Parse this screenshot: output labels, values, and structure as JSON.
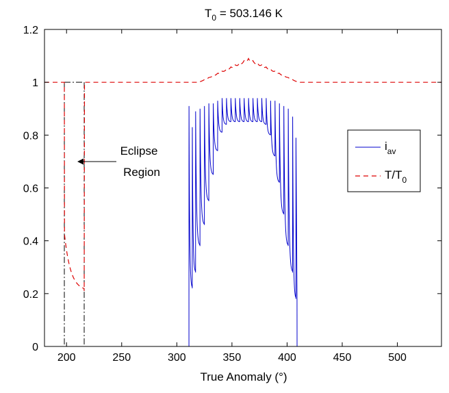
{
  "chart_data": {
    "type": "line",
    "title_main": "T",
    "title_sub": "0",
    "title_rest": " = 503.146 K",
    "xlabel": "True Anomaly (°)",
    "ylabel": "",
    "xlim": [
      180,
      540
    ],
    "ylim": [
      0,
      1.2
    ],
    "x_ticks": [
      200,
      250,
      300,
      350,
      400,
      450,
      500
    ],
    "x_tick_labels": [
      "200",
      "250",
      "300",
      "350",
      "400",
      "450",
      "500"
    ],
    "y_ticks": [
      0,
      0.2,
      0.4,
      0.6,
      0.8,
      1,
      1.2
    ],
    "y_tick_labels": [
      "0",
      "0.2",
      "0.4",
      "0.6",
      "0.8",
      "1",
      "1.2"
    ],
    "grid": false,
    "legend_position": "right",
    "legend": [
      {
        "main": "i",
        "sub": "av",
        "color": "#0000cc",
        "style": "solid"
      },
      {
        "main": "T/T",
        "sub": "0",
        "color": "#dd0000",
        "style": "dashed"
      }
    ],
    "annotation": {
      "line1": "Eclipse",
      "line2": "Region",
      "points_to": [
        216,
        0.69
      ]
    },
    "eclipse_bounds": [
      198,
      216
    ],
    "series": [
      {
        "name": "i_av",
        "color": "#0000cc",
        "style": "solid",
        "x_range": [
          311,
          409
        ],
        "pulses": [
          311,
          314,
          317,
          321,
          325,
          329,
          333,
          337,
          341,
          345,
          349,
          353,
          357,
          361,
          365,
          369,
          373,
          377,
          381,
          385,
          389,
          393,
          397,
          401,
          405,
          408
        ],
        "peaks": [
          0.91,
          0.83,
          0.89,
          0.9,
          0.91,
          0.92,
          0.92,
          0.93,
          0.94,
          0.94,
          0.94,
          0.94,
          0.94,
          0.94,
          0.94,
          0.94,
          0.94,
          0.94,
          0.94,
          0.93,
          0.93,
          0.92,
          0.91,
          0.9,
          0.87,
          0.79
        ],
        "valleys": [
          0.17,
          0.22,
          0.28,
          0.38,
          0.46,
          0.55,
          0.65,
          0.74,
          0.81,
          0.84,
          0.85,
          0.85,
          0.85,
          0.85,
          0.85,
          0.85,
          0.85,
          0.85,
          0.84,
          0.8,
          0.72,
          0.62,
          0.5,
          0.38,
          0.28,
          0.18
        ]
      },
      {
        "name": "T/T0",
        "color": "#dd0000",
        "style": "dashed",
        "baseline": 1.0,
        "eclipse": {
          "start": 198,
          "end": 216,
          "min": 0.21,
          "drop_to": 0.43
        },
        "hump": {
          "start": 320,
          "peak_x": 365,
          "peak_y": 1.09,
          "end": 410
        }
      }
    ]
  }
}
